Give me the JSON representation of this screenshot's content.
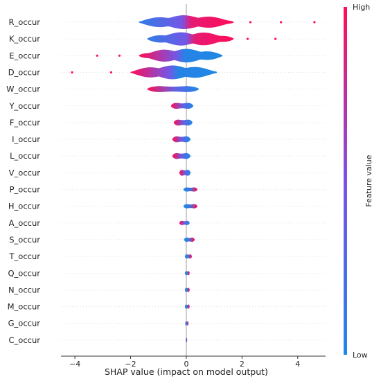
{
  "chart_data": {
    "type": "violin",
    "xlabel": "SHAP value (impact on model output)",
    "xlim": [
      -4.5,
      5.0
    ],
    "xticks": [
      -4,
      -2,
      0,
      2,
      4
    ],
    "xtick_labels": [
      "−4",
      "−2",
      "0",
      "2",
      "4"
    ],
    "colorbar": {
      "title": "Feature value",
      "high_label": "High",
      "low_label": "Low",
      "low_color": "#1E88E5",
      "high_color": "#FF0D57"
    },
    "features": [
      {
        "name": "R_occur",
        "min": -1.7,
        "max": 1.7,
        "outliers_pos": [
          2.3,
          3.4,
          4.6
        ],
        "outliers_neg": []
      },
      {
        "name": "K_occur",
        "min": -1.4,
        "max": 1.7,
        "outliers_pos": [
          2.2,
          3.2
        ],
        "outliers_neg": []
      },
      {
        "name": "E_occur",
        "min": -1.7,
        "max": 1.3,
        "outliers_pos": [],
        "outliers_neg": [
          -3.2,
          -2.4
        ]
      },
      {
        "name": "D_occur",
        "min": -2.0,
        "max": 1.1,
        "outliers_pos": [],
        "outliers_neg": [
          -4.1,
          -2.7
        ]
      },
      {
        "name": "W_occur",
        "min": -1.4,
        "max": 0.45,
        "outliers_pos": [],
        "outliers_neg": []
      },
      {
        "name": "Y_occur",
        "min": -0.55,
        "max": 0.25,
        "outliers_pos": [],
        "outliers_neg": []
      },
      {
        "name": "F_occur",
        "min": -0.45,
        "max": 0.22,
        "outliers_pos": [],
        "outliers_neg": []
      },
      {
        "name": "I_occur",
        "min": -0.5,
        "max": 0.15,
        "outliers_pos": [],
        "outliers_neg": []
      },
      {
        "name": "L_occur",
        "min": -0.5,
        "max": 0.15,
        "outliers_pos": [],
        "outliers_neg": []
      },
      {
        "name": "V_occur",
        "min": -0.25,
        "max": 0.15,
        "outliers_pos": [],
        "outliers_neg": []
      },
      {
        "name": "P_occur",
        "min": -0.1,
        "max": 0.4,
        "outliers_pos": [],
        "outliers_neg": []
      },
      {
        "name": "H_occur",
        "min": -0.1,
        "max": 0.4,
        "outliers_pos": [],
        "outliers_neg": []
      },
      {
        "name": "A_occur",
        "min": -0.25,
        "max": 0.12,
        "outliers_pos": [],
        "outliers_neg": []
      },
      {
        "name": "S_occur",
        "min": -0.08,
        "max": 0.3,
        "outliers_pos": [],
        "outliers_neg": []
      },
      {
        "name": "T_occur",
        "min": -0.05,
        "max": 0.2,
        "outliers_pos": [],
        "outliers_neg": []
      },
      {
        "name": "Q_occur",
        "min": -0.05,
        "max": 0.12,
        "outliers_pos": [],
        "outliers_neg": []
      },
      {
        "name": "N_occur",
        "min": -0.05,
        "max": 0.12,
        "outliers_pos": [],
        "outliers_neg": []
      },
      {
        "name": "M_occur",
        "min": -0.05,
        "max": 0.12,
        "outliers_pos": [],
        "outliers_neg": []
      },
      {
        "name": "G_occur",
        "min": -0.04,
        "max": 0.08,
        "outliers_pos": [],
        "outliers_neg": []
      },
      {
        "name": "C_occur",
        "min": -0.02,
        "max": 0.03,
        "outliers_pos": [],
        "outliers_neg": []
      }
    ]
  }
}
